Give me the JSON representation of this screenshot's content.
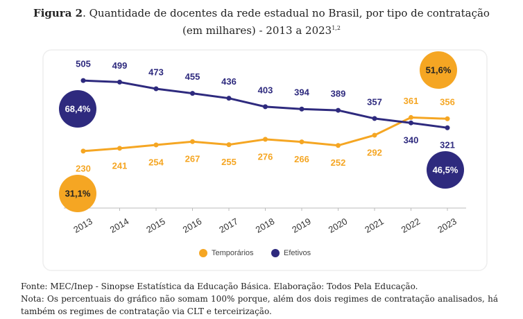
{
  "chart_data": {
    "type": "line",
    "title_label": "Figura 2",
    "title": ". Quantidade de docentes da rede estadual no Brasil, por tipo de contratação (em milhares) - 2013 a 2023",
    "title_superscript": "1,2",
    "categories": [
      "2013",
      "2014",
      "2015",
      "2016",
      "2017",
      "2018",
      "2019",
      "2020",
      "2021",
      "2022",
      "2023"
    ],
    "series": [
      {
        "name": "Temporários",
        "color": "#f5a623",
        "values": [
          230,
          241,
          254,
          267,
          255,
          276,
          266,
          252,
          292,
          361,
          356
        ]
      },
      {
        "name": "Efetivos",
        "color": "#2e2a7e",
        "values": [
          505,
          499,
          473,
          455,
          436,
          403,
          394,
          389,
          357,
          340,
          321
        ]
      }
    ],
    "annotations": [
      {
        "text": "68,4%",
        "color": "#2e2a7e"
      },
      {
        "text": "31,1%",
        "color": "#f5a623"
      },
      {
        "text": "51,6%",
        "color": "#f5a623"
      },
      {
        "text": "46,5%",
        "color": "#2e2a7e"
      }
    ],
    "legend": "bottom",
    "source": "Fonte: MEC/Inep - Sinopse Estatística da Educação Básica. Elaboração: Todos Pela Educação.",
    "note": "Nota: Os percentuais do gráfico não somam 100% porque, além dos dois regimes de contratação analisados, há também os regimes de contratação via CLT e terceirização."
  }
}
